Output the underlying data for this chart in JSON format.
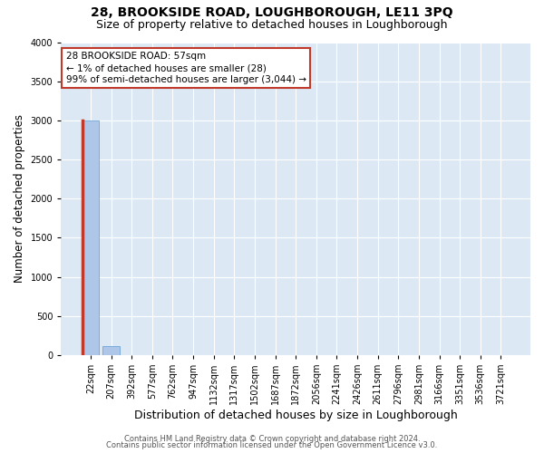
{
  "title1": "28, BROOKSIDE ROAD, LOUGHBOROUGH, LE11 3PQ",
  "title2": "Size of property relative to detached houses in Loughborough",
  "xlabel": "Distribution of detached houses by size in Loughborough",
  "ylabel": "Number of detached properties",
  "footer1": "Contains HM Land Registry data © Crown copyright and database right 2024.",
  "footer2": "Contains public sector information licensed under the Open Government Licence v3.0.",
  "categories": [
    "22sqm",
    "207sqm",
    "392sqm",
    "577sqm",
    "762sqm",
    "947sqm",
    "1132sqm",
    "1317sqm",
    "1502sqm",
    "1687sqm",
    "1872sqm",
    "2056sqm",
    "2241sqm",
    "2426sqm",
    "2611sqm",
    "2796sqm",
    "2981sqm",
    "3166sqm",
    "3351sqm",
    "3536sqm",
    "3721sqm"
  ],
  "values": [
    3000,
    110,
    2,
    1,
    1,
    0,
    0,
    0,
    0,
    0,
    0,
    0,
    0,
    0,
    0,
    0,
    0,
    0,
    0,
    0,
    0
  ],
  "bar_color": "#aec6e8",
  "bar_edge_color": "#5b9bd5",
  "highlight_bar_index": 0,
  "highlight_bar_color": "#c0392b",
  "ylim": [
    0,
    4000
  ],
  "yticks": [
    0,
    500,
    1000,
    1500,
    2000,
    2500,
    3000,
    3500,
    4000
  ],
  "bg_color": "#dce9f5",
  "grid_color": "#ffffff",
  "annotation_line1": "28 BROOKSIDE ROAD: 57sqm",
  "annotation_line2": "← 1% of detached houses are smaller (28)",
  "annotation_line3": "99% of semi-detached houses are larger (3,044) →",
  "annotation_box_color": "#ffffff",
  "annotation_border_color": "#c0392b",
  "title1_fontsize": 10,
  "title2_fontsize": 9,
  "xlabel_fontsize": 9,
  "ylabel_fontsize": 8.5,
  "tick_fontsize": 7,
  "annotation_fontsize": 7.5,
  "footer_fontsize": 6
}
